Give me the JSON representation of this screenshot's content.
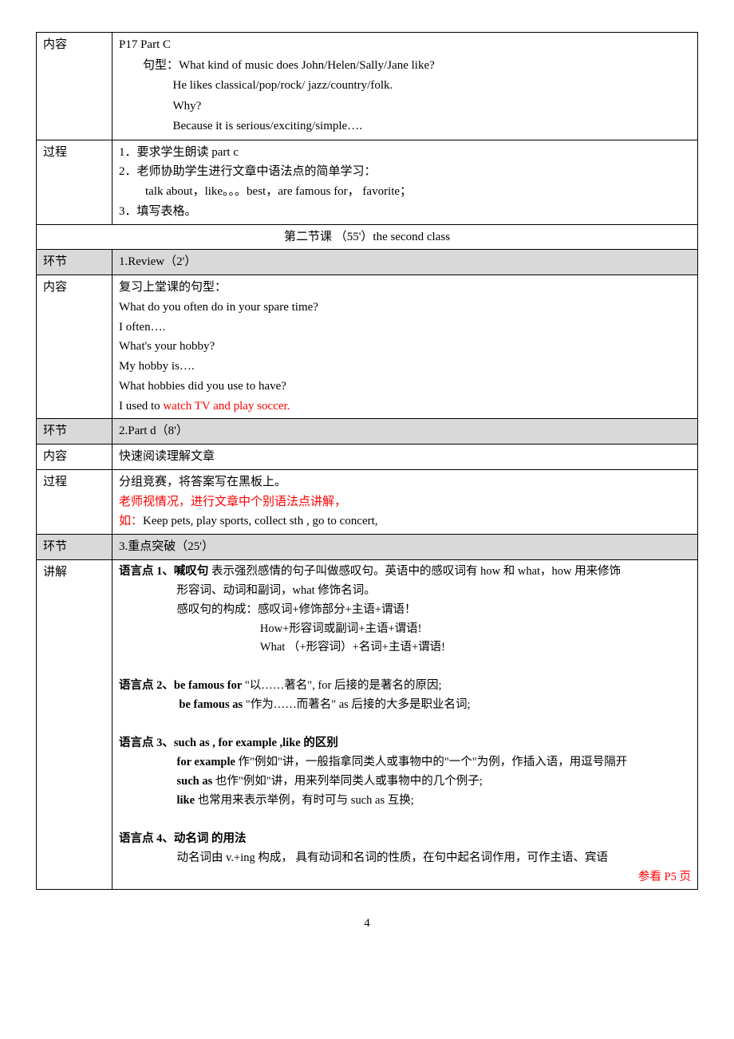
{
  "row1": {
    "label": "内容",
    "l1": "P17 Part C",
    "l2a": "句型：",
    "l2b": "What kind of music does John/Helen/Sally/Jane like?",
    "l3": "He likes classical/pop/rock/ jazz/country/folk.",
    "l4": "Why?",
    "l5": "Because it is serious/exciting/simple…."
  },
  "row2": {
    "label": "过程",
    "l1": "1．要求学生朗读 part c",
    "l2": "2．老师协助学生进行文章中语法点的简单学习：",
    "l3": "talk about，like。。。best，are famous for， favorite；",
    "l4": "3．填写表格。"
  },
  "sectionHeader": "第二节课 （55'）the second class",
  "row3": {
    "label": "环节",
    "content": "1.Review（2'）"
  },
  "row4": {
    "label": "内容",
    "l1": "复习上堂课的句型：",
    "l2": "What do you often do in your spare time?",
    "l3": "I often….",
    "l4": "What's your hobby?",
    "l5": "My hobby is….",
    "l6": "What hobbies did you use to have?",
    "l7a": "I used to ",
    "l7b": "watch TV and play soccer."
  },
  "row5": {
    "label": "环节",
    "content": "2.Part d（8'）"
  },
  "row6": {
    "label": "内容",
    "content": "快速阅读理解文章"
  },
  "row7": {
    "label": "过程",
    "l1": "分组竞赛，将答案写在黑板上。",
    "l2": "老师视情况，进行文章中个别语法点讲解，",
    "l3a": "如：",
    "l3b": "Keep pets, play sports, collect sth , go to concert,"
  },
  "row8": {
    "label": "环节",
    "content": "3.重点突破（25'）"
  },
  "row9": {
    "label": "讲解",
    "p1t": "语言点 1、喊叹句",
    "p1a": "   表示强烈感情的句子叫做感叹句。英语中的感叹词有 how  和 what，how 用来修饰",
    "p1b": "形容词、动词和副词，what 修饰名词。",
    "p1c": "感叹句的构成：感叹词+修饰部分+主语+谓语！",
    "p1d": "How+形容词或副词+主语+谓语!",
    "p1e": "What （+形容词）+名词+主语+谓语!",
    "p2t": "语言点 2、be famous for",
    "p2a": "\"以……著名\",        for 后接的是著名的原因;",
    "p2b": "be famous as",
    "p2c": "\"作为……而著名\"    as 后接的大多是职业名词;",
    "p3t": "语言点 3、such as , for example ,like  的区别",
    "p3a1": "for example",
    "p3a2": " 作\"例如\"讲，一般指拿同类人或事物中的\"一个\"为例，作插入语，用逗号隔开",
    "p3b1": "such as",
    "p3b2": "      也作\"例如\"讲，用来列举同类人或事物中的几个例子;",
    "p3c1": "like",
    "p3c2": "            也常用来表示举例，有时可与 such as 互换;",
    "p4t": "语言点 4、动名词  的用法",
    "p4a": "动名词由 v.+ing 构成，  具有动词和名词的性质，在句中起名词作用，可作主语、宾语",
    "ref": "参看 P5 页"
  },
  "pageNumber": "4"
}
